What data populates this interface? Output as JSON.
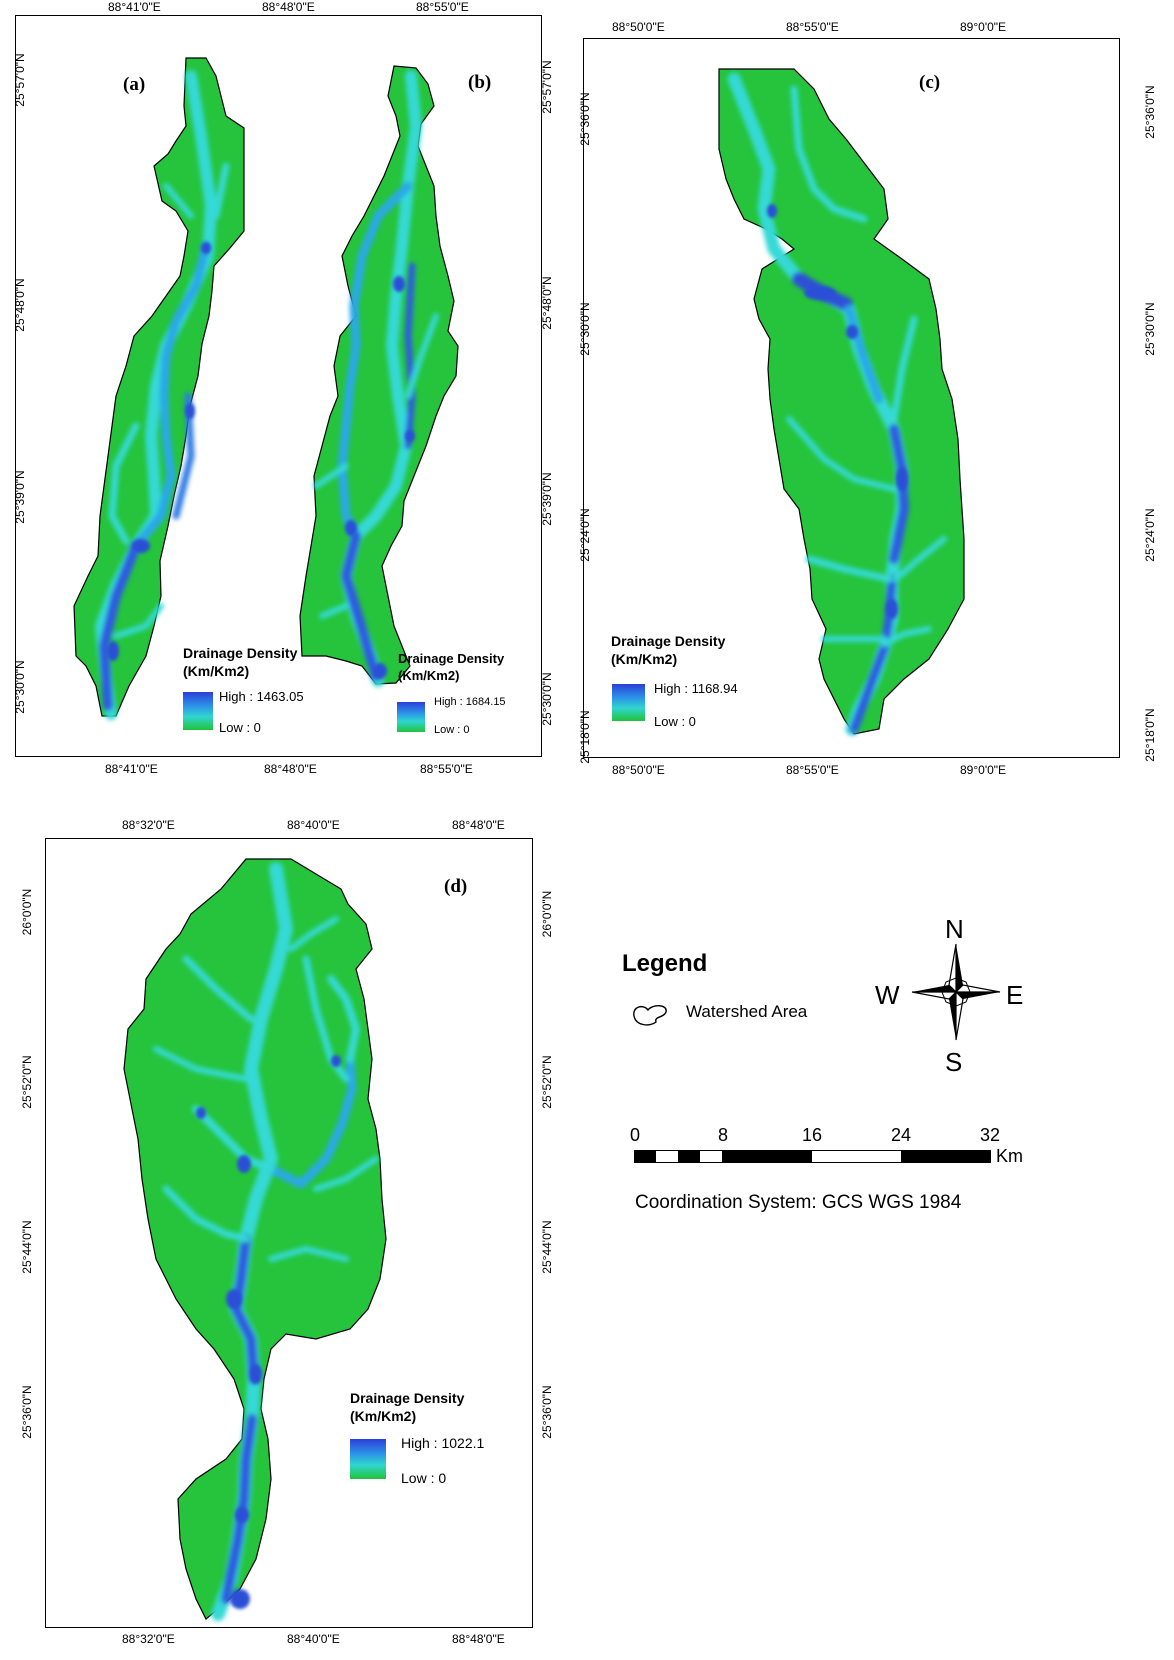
{
  "panels": [
    {
      "id": "ab",
      "labels": [
        "(a)",
        "(b)"
      ],
      "top_ticks": [
        "88°41'0\"E",
        "88°48'0\"E",
        "88°55'0\"E"
      ],
      "bottom_ticks": [
        "88°41'0\"E",
        "88°48'0\"E",
        "88°55'0\"E"
      ],
      "left_ticks": [
        "25°57'0\"N",
        "25°48'0\"N",
        "25°39'0\"N",
        "25°30'0\"N"
      ],
      "right_ticks": [
        "25°57'0\"N",
        "25°48'0\"N",
        "25°39'0\"N",
        "25°30'0\"N"
      ],
      "legend_a": {
        "title_1": "Drainage Density",
        "title_2": "(Km/Km2)",
        "high": "High : 1463.05",
        "low": "Low : 0"
      },
      "legend_b": {
        "title_1": "Drainage Density",
        "title_2": "(Km/Km2)",
        "high": "High : 1684.15",
        "low": "Low : 0"
      }
    },
    {
      "id": "c",
      "labels": [
        "(c)"
      ],
      "top_ticks": [
        "88°50'0\"E",
        "88°55'0\"E",
        "89°0'0\"E"
      ],
      "bottom_ticks": [
        "88°50'0\"E",
        "88°55'0\"E",
        "89°0'0\"E"
      ],
      "left_ticks": [
        "25°36'0\"N",
        "25°30'0\"N",
        "25°24'0\"N",
        "25°18'0\"N"
      ],
      "right_ticks": [
        "25°36'0\"N",
        "25°30'0\"N",
        "25°24'0\"N",
        "25°18'0\"N"
      ],
      "legend": {
        "title_1": "Drainage Density",
        "title_2": "(Km/Km2)",
        "high": "High : 1168.94",
        "low": "Low : 0"
      }
    },
    {
      "id": "d",
      "labels": [
        "(d)"
      ],
      "top_ticks": [
        "88°32'0\"E",
        "88°40'0\"E",
        "88°48'0\"E"
      ],
      "bottom_ticks": [
        "88°32'0\"E",
        "88°40'0\"E",
        "88°48'0\"E"
      ],
      "left_ticks": [
        "26°0'0\"N",
        "25°52'0\"N",
        "25°44'0\"N",
        "25°36'0\"N"
      ],
      "right_ticks": [
        "26°0'0\"N",
        "25°52'0\"N",
        "25°44'0\"N",
        "25°36'0\"N"
      ],
      "legend": {
        "title_1": "Drainage Density",
        "title_2": "(Km/Km2)",
        "high": "High : 1022.1",
        "low": "Low : 0"
      }
    }
  ],
  "map_legend": {
    "title": "Legend",
    "item": "Watershed Area"
  },
  "compass": {
    "n": "N",
    "s": "S",
    "e": "E",
    "w": "W"
  },
  "scale_bar": {
    "labels": [
      "0",
      "8",
      "16",
      "24",
      "32"
    ],
    "unit": "Km"
  },
  "coordinate_system": "Coordination System: GCS WGS 1984",
  "colors": {
    "low": "#22c23a",
    "mid": "#30d6cf",
    "high": "#2c3fd8"
  }
}
